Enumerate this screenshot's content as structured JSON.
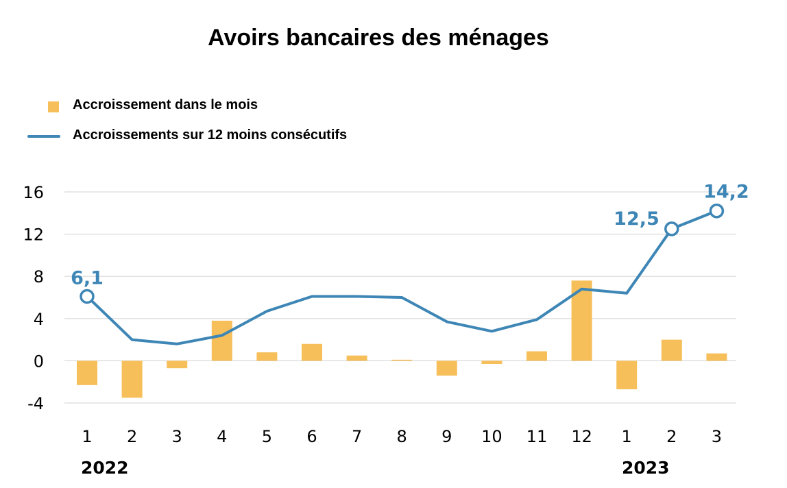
{
  "colors": {
    "bar": "#F6BF5A",
    "line": "#3D86B5",
    "grid": "#D9D9D9",
    "background": "#FFFFFF",
    "text": "#000000"
  },
  "chart_data": {
    "type": "bar",
    "title": "Avoirs bancaires des ménages",
    "xlabel": "",
    "ylabel": "",
    "ylim": [
      -4,
      16
    ],
    "yticks": [
      "16",
      "12",
      "8",
      "4",
      "0",
      "-4"
    ],
    "ytick_values": [
      16,
      12,
      8,
      4,
      0,
      -4
    ],
    "categories": [
      "1",
      "2",
      "3",
      "4",
      "5",
      "6",
      "7",
      "8",
      "9",
      "10",
      "11",
      "12",
      "1",
      "2",
      "3"
    ],
    "year_labels": [
      {
        "text": "2022",
        "category_index": 0
      },
      {
        "text": "2023",
        "category_index": 13
      }
    ],
    "grid": true,
    "legend_position": "top-left",
    "series": [
      {
        "name": "Accroissement dans le mois",
        "type": "bar",
        "color": "#F6BF5A",
        "values": [
          -2.3,
          -3.5,
          -0.7,
          3.8,
          0.8,
          1.6,
          0.5,
          0.1,
          -1.4,
          -0.3,
          0.9,
          7.6,
          -2.7,
          2.0,
          0.7
        ]
      },
      {
        "name": "Accroissements sur 12 moins consécutifs",
        "type": "line",
        "color": "#3D86B5",
        "values": [
          6.1,
          2.0,
          1.6,
          2.4,
          4.7,
          6.1,
          6.1,
          6.0,
          3.7,
          2.8,
          3.9,
          6.8,
          6.4,
          12.5,
          14.2
        ]
      }
    ],
    "annotations": [
      {
        "text": "6,1",
        "category_index": 0,
        "value": 6.1
      },
      {
        "text": "12,5",
        "category_index": 13,
        "value": 12.5
      },
      {
        "text": "14,2",
        "category_index": 14,
        "value": 14.2
      }
    ]
  }
}
